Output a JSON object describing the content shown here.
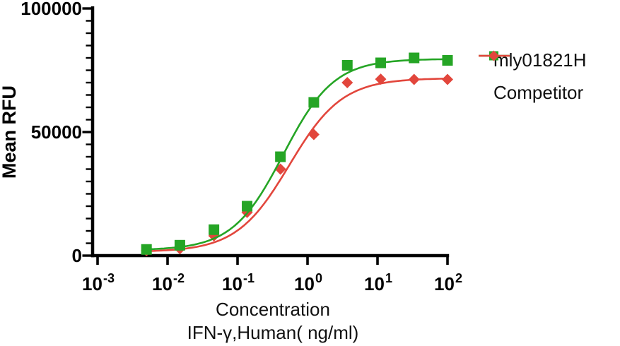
{
  "chart_data": {
    "type": "line",
    "subtype": "dose-response-4PL",
    "title": "",
    "ylabel": "Mean RFU",
    "xlabel_line1": "Concentration",
    "xlabel_line2": "IFN-γ,Human( ng/ml)",
    "x_scale": "log10",
    "x_range_exponents": [
      -3,
      2
    ],
    "ylim": [
      0,
      100000
    ],
    "grid": false,
    "legend_position": "right-top",
    "axis_color": "#000000",
    "y_ticks": [
      {
        "value": 0,
        "label": "0"
      },
      {
        "value": 50000,
        "label": "50000"
      },
      {
        "value": 100000,
        "label": "100000"
      }
    ],
    "y_minor_tick_step": 5000,
    "x_ticks": [
      {
        "base": "10",
        "exp": "-3"
      },
      {
        "base": "10",
        "exp": "-2"
      },
      {
        "base": "10",
        "exp": "-1"
      },
      {
        "base": "10",
        "exp": "0"
      },
      {
        "base": "10",
        "exp": "1"
      },
      {
        "base": "10",
        "exp": "2"
      }
    ],
    "series": [
      {
        "name": "mly01821H",
        "marker": "square",
        "color": "#25a525",
        "x": [
          0.005,
          0.015,
          0.046,
          0.137,
          0.41,
          1.23,
          3.7,
          11.1,
          33.3,
          100
        ],
        "y": [
          2500,
          4200,
          10500,
          20000,
          40000,
          62000,
          77000,
          78000,
          80000,
          79000
        ],
        "fit": {
          "model": "4PL",
          "bottom": 2200,
          "top": 79600,
          "ec50": 0.45,
          "hill": 1.2
        }
      },
      {
        "name": "Competitor",
        "marker": "diamond",
        "color": "#e2463c",
        "x": [
          0.005,
          0.015,
          0.046,
          0.137,
          0.41,
          1.23,
          3.7,
          11.1,
          33.3,
          100
        ],
        "y": [
          2000,
          2800,
          8000,
          17500,
          35000,
          49000,
          70000,
          71400,
          71300,
          71300
        ],
        "fit": {
          "model": "4PL",
          "bottom": 1500,
          "top": 71800,
          "ec50": 0.55,
          "hill": 1.15
        }
      }
    ]
  }
}
